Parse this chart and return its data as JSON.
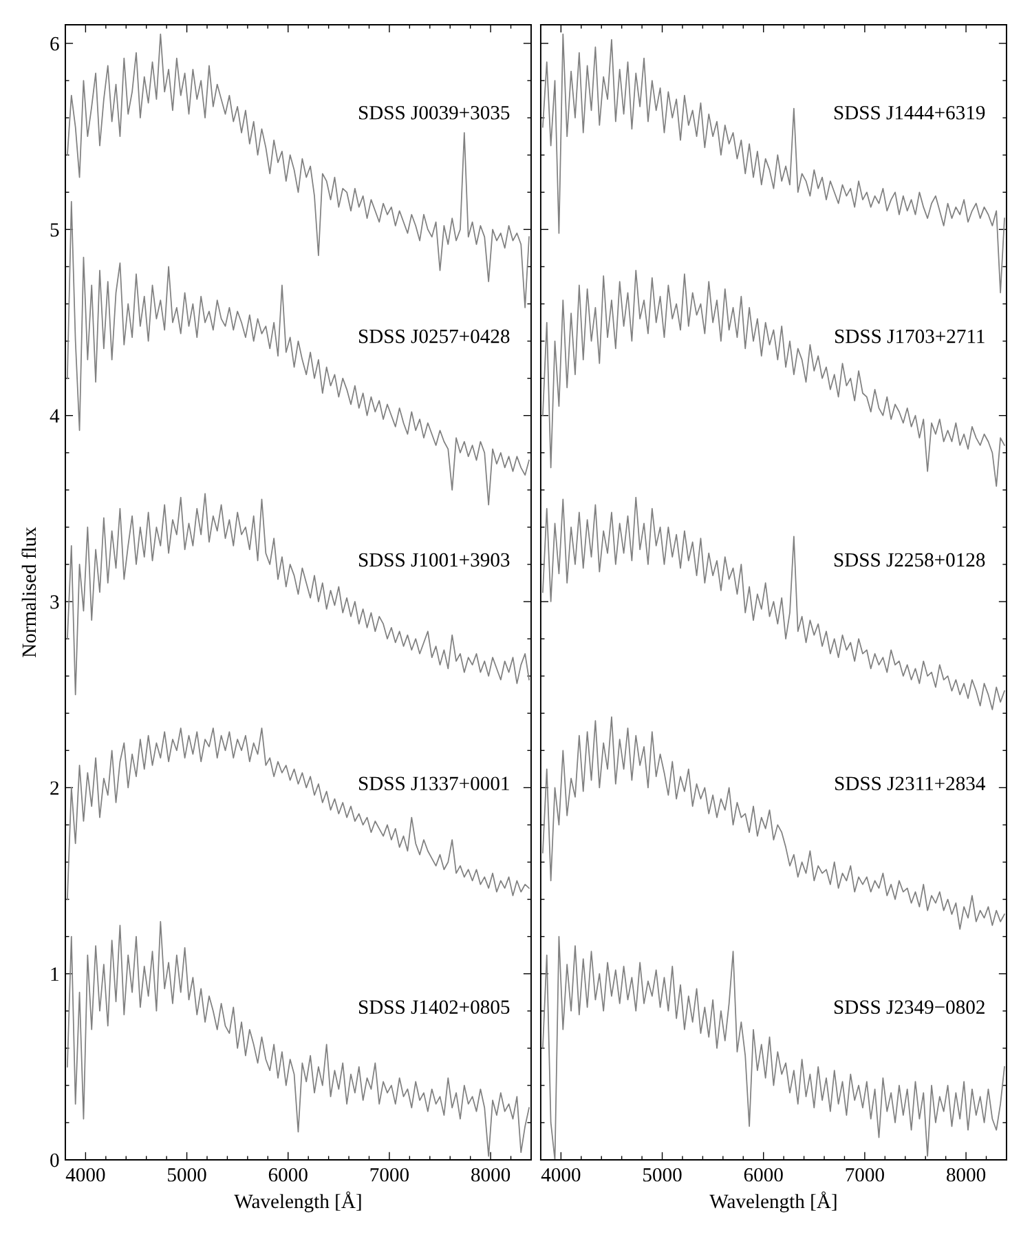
{
  "chart_data": [
    {
      "type": "line",
      "xlabel": "Wavelength [Å]",
      "ylabel": "Normalised flux",
      "x": [
        3820,
        3860,
        3900,
        3940,
        3980,
        4020,
        4060,
        4100,
        4140,
        4180,
        4220,
        4260,
        4300,
        4340,
        4380,
        4420,
        4460,
        4500,
        4540,
        4580,
        4620,
        4660,
        4700,
        4740,
        4780,
        4820,
        4860,
        4900,
        4940,
        4980,
        5020,
        5060,
        5100,
        5140,
        5180,
        5220,
        5260,
        5300,
        5340,
        5380,
        5420,
        5460,
        5500,
        5540,
        5580,
        5620,
        5660,
        5700,
        5740,
        5780,
        5820,
        5860,
        5900,
        5940,
        5980,
        6020,
        6060,
        6100,
        6140,
        6180,
        6220,
        6260,
        6300,
        6340,
        6380,
        6420,
        6460,
        6500,
        6540,
        6580,
        6620,
        6660,
        6700,
        6740,
        6780,
        6820,
        6860,
        6900,
        6940,
        6980,
        7020,
        7060,
        7100,
        7140,
        7180,
        7220,
        7260,
        7300,
        7340,
        7380,
        7420,
        7460,
        7500,
        7540,
        7580,
        7620,
        7660,
        7700,
        7740,
        7780,
        7820,
        7860,
        7900,
        7940,
        7980,
        8020,
        8060,
        8100,
        8140,
        8180,
        8220,
        8260,
        8300,
        8340,
        8380
      ],
      "xlim": [
        3800,
        8400
      ],
      "ylim": [
        0,
        6.1
      ],
      "xticks": [
        4000,
        {
          "value": 4200,
          "label": null
        },
        {
          "value": 4400,
          "label": null
        },
        {
          "value": 4600,
          "label": null
        },
        {
          "value": 4800,
          "label": null
        },
        5000,
        {
          "value": 5200,
          "label": null
        },
        {
          "value": 5400,
          "label": null
        },
        {
          "value": 5600,
          "label": null
        },
        {
          "value": 5800,
          "label": null
        },
        6000,
        {
          "value": 6200,
          "label": null
        },
        {
          "value": 6400,
          "label": null
        },
        {
          "value": 6600,
          "label": null
        },
        {
          "value": 6800,
          "label": null
        },
        7000,
        {
          "value": 7200,
          "label": null
        },
        {
          "value": 7400,
          "label": null
        },
        {
          "value": 7600,
          "label": null
        },
        {
          "value": 7800,
          "label": null
        },
        8000,
        {
          "value": 8200,
          "label": null
        }
      ],
      "yticks": [
        0,
        {
          "value": 0.2,
          "label": null
        },
        {
          "value": 0.4,
          "label": null
        },
        {
          "value": 0.6,
          "label": null
        },
        {
          "value": 0.8,
          "label": null
        },
        1,
        {
          "value": 1.2,
          "label": null
        },
        {
          "value": 1.4,
          "label": null
        },
        {
          "value": 1.6,
          "label": null
        },
        {
          "value": 1.8,
          "label": null
        },
        2,
        {
          "value": 2.2,
          "label": null
        },
        {
          "value": 2.4,
          "label": null
        },
        {
          "value": 2.6,
          "label": null
        },
        {
          "value": 2.8,
          "label": null
        },
        3,
        {
          "value": 3.2,
          "label": null
        },
        {
          "value": 3.4,
          "label": null
        },
        {
          "value": 3.6,
          "label": null
        },
        {
          "value": 3.8,
          "label": null
        },
        4,
        {
          "value": 4.2,
          "label": null
        },
        {
          "value": 4.4,
          "label": null
        },
        {
          "value": 4.6,
          "label": null
        },
        {
          "value": 4.8,
          "label": null
        },
        5,
        {
          "value": 5.2,
          "label": null
        },
        {
          "value": 5.4,
          "label": null
        },
        {
          "value": 5.6,
          "label": null
        },
        {
          "value": 5.8,
          "label": null
        },
        6
      ],
      "series": [
        {
          "name": "SDSS J0039+3035",
          "color": "#808080",
          "values": [
            5.4,
            5.72,
            5.55,
            5.28,
            5.8,
            5.5,
            5.66,
            5.84,
            5.45,
            5.7,
            5.88,
            5.58,
            5.78,
            5.5,
            5.92,
            5.62,
            5.74,
            5.95,
            5.6,
            5.82,
            5.68,
            5.9,
            5.7,
            6.05,
            5.74,
            5.86,
            5.64,
            5.92,
            5.72,
            5.84,
            5.62,
            5.86,
            5.7,
            5.8,
            5.6,
            5.88,
            5.66,
            5.78,
            5.7,
            5.62,
            5.72,
            5.58,
            5.66,
            5.52,
            5.64,
            5.46,
            5.58,
            5.4,
            5.54,
            5.44,
            5.3,
            5.48,
            5.36,
            5.42,
            5.26,
            5.4,
            5.32,
            5.2,
            5.38,
            5.28,
            5.34,
            5.18,
            4.86,
            5.3,
            5.26,
            5.16,
            5.28,
            5.12,
            5.22,
            5.2,
            5.1,
            5.22,
            5.12,
            5.18,
            5.06,
            5.16,
            5.1,
            5.04,
            5.14,
            5.08,
            5.12,
            5.02,
            5.1,
            5.04,
            4.98,
            5.08,
            5.02,
            4.94,
            5.08,
            5.0,
            4.96,
            5.04,
            4.78,
            5.02,
            4.92,
            5.06,
            4.94,
            5.0,
            5.52,
            4.96,
            5.04,
            4.92,
            5.02,
            4.96,
            4.72,
            5.0,
            4.94,
            4.98,
            4.9,
            5.02,
            4.94,
            4.98,
            4.92,
            4.58,
            4.96
          ]
        },
        {
          "name": "SDSS J0257+0428",
          "color": "#808080",
          "values": [
            4.2,
            5.15,
            4.4,
            3.92,
            4.85,
            4.3,
            4.7,
            4.18,
            4.78,
            4.36,
            4.72,
            4.3,
            4.66,
            4.82,
            4.38,
            4.6,
            4.42,
            4.76,
            4.48,
            4.64,
            4.4,
            4.7,
            4.52,
            4.62,
            4.46,
            4.8,
            4.5,
            4.58,
            4.44,
            4.66,
            4.48,
            4.6,
            4.42,
            4.64,
            4.5,
            4.56,
            4.46,
            4.62,
            4.52,
            4.48,
            4.58,
            4.46,
            4.56,
            4.5,
            4.42,
            4.54,
            4.4,
            4.52,
            4.44,
            4.48,
            4.36,
            4.5,
            4.32,
            4.7,
            4.34,
            4.42,
            4.26,
            4.4,
            4.3,
            4.22,
            4.34,
            4.2,
            4.3,
            4.12,
            4.26,
            4.16,
            4.22,
            4.1,
            4.2,
            4.14,
            4.06,
            4.16,
            4.04,
            4.12,
            4.0,
            4.1,
            4.02,
            4.08,
            3.98,
            4.06,
            4.0,
            3.94,
            4.04,
            3.96,
            3.9,
            4.02,
            3.92,
            3.98,
            3.88,
            3.96,
            3.9,
            3.84,
            3.92,
            3.86,
            3.82,
            3.6,
            3.88,
            3.8,
            3.86,
            3.78,
            3.84,
            3.76,
            3.86,
            3.8,
            3.52,
            3.82,
            3.74,
            3.8,
            3.72,
            3.78,
            3.7,
            3.78,
            3.72,
            3.68,
            3.76
          ]
        },
        {
          "name": "SDSS J1001+3903",
          "color": "#808080",
          "values": [
            2.8,
            3.3,
            2.5,
            3.2,
            2.95,
            3.4,
            2.9,
            3.28,
            3.05,
            3.45,
            3.1,
            3.38,
            3.18,
            3.5,
            3.12,
            3.3,
            3.46,
            3.2,
            3.4,
            3.24,
            3.48,
            3.22,
            3.4,
            3.3,
            3.52,
            3.26,
            3.44,
            3.36,
            3.56,
            3.28,
            3.42,
            3.3,
            3.5,
            3.36,
            3.58,
            3.32,
            3.46,
            3.38,
            3.52,
            3.34,
            3.44,
            3.3,
            3.48,
            3.36,
            3.4,
            3.28,
            3.46,
            3.22,
            3.55,
            3.26,
            3.2,
            3.34,
            3.12,
            3.24,
            3.08,
            3.2,
            3.14,
            3.04,
            3.18,
            3.1,
            3.02,
            3.14,
            3.0,
            3.1,
            2.96,
            3.06,
            2.98,
            3.08,
            2.94,
            3.02,
            2.92,
            3.0,
            2.88,
            2.96,
            2.86,
            2.94,
            2.84,
            2.92,
            2.88,
            2.8,
            2.86,
            2.78,
            2.84,
            2.76,
            2.82,
            2.74,
            2.8,
            2.72,
            2.78,
            2.84,
            2.7,
            2.76,
            2.66,
            2.74,
            2.64,
            2.82,
            2.68,
            2.72,
            2.62,
            2.7,
            2.66,
            2.72,
            2.62,
            2.68,
            2.6,
            2.7,
            2.64,
            2.58,
            2.68,
            2.62,
            2.7,
            2.56,
            2.66,
            2.72,
            2.58
          ]
        },
        {
          "name": "SDSS J1337+0001",
          "color": "#808080",
          "values": [
            1.4,
            2.0,
            1.7,
            2.12,
            1.82,
            2.08,
            1.9,
            2.16,
            1.84,
            2.05,
            1.96,
            2.2,
            1.92,
            2.14,
            2.24,
            2.0,
            2.18,
            2.06,
            2.26,
            2.1,
            2.28,
            2.12,
            2.24,
            2.16,
            2.3,
            2.14,
            2.26,
            2.2,
            2.32,
            2.16,
            2.28,
            2.18,
            2.3,
            2.14,
            2.26,
            2.22,
            2.32,
            2.16,
            2.28,
            2.2,
            2.3,
            2.16,
            2.26,
            2.2,
            2.28,
            2.14,
            2.24,
            2.18,
            2.32,
            2.12,
            2.16,
            2.06,
            2.14,
            2.08,
            2.12,
            2.04,
            2.1,
            2.02,
            2.08,
            2.0,
            2.06,
            1.96,
            2.02,
            1.92,
            1.98,
            1.88,
            1.94,
            1.86,
            1.92,
            1.84,
            1.9,
            1.82,
            1.86,
            1.8,
            1.84,
            1.76,
            1.82,
            1.78,
            1.74,
            1.8,
            1.72,
            1.78,
            1.68,
            1.74,
            1.66,
            1.84,
            1.7,
            1.64,
            1.72,
            1.66,
            1.62,
            1.58,
            1.64,
            1.56,
            1.6,
            1.72,
            1.54,
            1.58,
            1.52,
            1.56,
            1.5,
            1.56,
            1.48,
            1.52,
            1.46,
            1.54,
            1.44,
            1.5,
            1.46,
            1.52,
            1.42,
            1.5,
            1.44,
            1.48,
            1.46
          ]
        },
        {
          "name": "SDSS J1402+0805",
          "color": "#808080",
          "values": [
            0.5,
            1.2,
            0.3,
            0.9,
            0.22,
            1.1,
            0.7,
            1.15,
            0.8,
            1.05,
            0.72,
            1.18,
            0.85,
            1.26,
            0.78,
            1.1,
            0.9,
            1.2,
            0.82,
            1.04,
            0.88,
            1.12,
            0.8,
            1.28,
            0.92,
            1.06,
            0.84,
            1.1,
            0.9,
            1.14,
            0.86,
            0.98,
            0.78,
            0.92,
            0.74,
            0.88,
            0.8,
            0.7,
            0.84,
            0.72,
            0.68,
            0.82,
            0.6,
            0.74,
            0.56,
            0.7,
            0.62,
            0.52,
            0.66,
            0.54,
            0.48,
            0.62,
            0.44,
            0.58,
            0.4,
            0.54,
            0.46,
            0.15,
            0.52,
            0.42,
            0.56,
            0.36,
            0.5,
            0.4,
            0.62,
            0.34,
            0.48,
            0.38,
            0.52,
            0.3,
            0.46,
            0.36,
            0.5,
            0.32,
            0.44,
            0.38,
            0.52,
            0.3,
            0.42,
            0.36,
            0.4,
            0.3,
            0.44,
            0.34,
            0.38,
            0.28,
            0.42,
            0.32,
            0.36,
            0.26,
            0.38,
            0.3,
            0.34,
            0.24,
            0.44,
            0.28,
            0.36,
            0.22,
            0.4,
            0.3,
            0.34,
            0.26,
            0.38,
            0.28,
            0.02,
            0.32,
            0.24,
            0.36,
            0.26,
            0.3,
            0.22,
            0.34,
            0.04,
            0.18,
            0.28
          ]
        }
      ]
    },
    {
      "type": "line",
      "xlabel": "Wavelength [Å]",
      "tick_labels": "x",
      "x": [
        3820,
        3860,
        3900,
        3940,
        3980,
        4020,
        4060,
        4100,
        4140,
        4180,
        4220,
        4260,
        4300,
        4340,
        4380,
        4420,
        4460,
        4500,
        4540,
        4580,
        4620,
        4660,
        4700,
        4740,
        4780,
        4820,
        4860,
        4900,
        4940,
        4980,
        5020,
        5060,
        5100,
        5140,
        5180,
        5220,
        5260,
        5300,
        5340,
        5380,
        5420,
        5460,
        5500,
        5540,
        5580,
        5620,
        5660,
        5700,
        5740,
        5780,
        5820,
        5860,
        5900,
        5940,
        5980,
        6020,
        6060,
        6100,
        6140,
        6180,
        6220,
        6260,
        6300,
        6340,
        6380,
        6420,
        6460,
        6500,
        6540,
        6580,
        6620,
        6660,
        6700,
        6740,
        6780,
        6820,
        6860,
        6900,
        6940,
        6980,
        7020,
        7060,
        7100,
        7140,
        7180,
        7220,
        7260,
        7300,
        7340,
        7380,
        7420,
        7460,
        7500,
        7540,
        7580,
        7620,
        7660,
        7700,
        7740,
        7780,
        7820,
        7860,
        7900,
        7940,
        7980,
        8020,
        8060,
        8100,
        8140,
        8180,
        8220,
        8260,
        8300,
        8340,
        8380
      ],
      "xlim": [
        3800,
        8400
      ],
      "ylim": [
        0,
        6.1
      ],
      "xticks": [
        4000,
        {
          "value": 4200,
          "label": null
        },
        {
          "value": 4400,
          "label": null
        },
        {
          "value": 4600,
          "label": null
        },
        {
          "value": 4800,
          "label": null
        },
        5000,
        {
          "value": 5200,
          "label": null
        },
        {
          "value": 5400,
          "label": null
        },
        {
          "value": 5600,
          "label": null
        },
        {
          "value": 5800,
          "label": null
        },
        6000,
        {
          "value": 6200,
          "label": null
        },
        {
          "value": 6400,
          "label": null
        },
        {
          "value": 6600,
          "label": null
        },
        {
          "value": 6800,
          "label": null
        },
        7000,
        {
          "value": 7200,
          "label": null
        },
        {
          "value": 7400,
          "label": null
        },
        {
          "value": 7600,
          "label": null
        },
        {
          "value": 7800,
          "label": null
        },
        8000,
        {
          "value": 8200,
          "label": null
        }
      ],
      "yticks": [
        0,
        {
          "value": 0.2,
          "label": null
        },
        {
          "value": 0.4,
          "label": null
        },
        {
          "value": 0.6,
          "label": null
        },
        {
          "value": 0.8,
          "label": null
        },
        1,
        {
          "value": 1.2,
          "label": null
        },
        {
          "value": 1.4,
          "label": null
        },
        {
          "value": 1.6,
          "label": null
        },
        {
          "value": 1.8,
          "label": null
        },
        2,
        {
          "value": 2.2,
          "label": null
        },
        {
          "value": 2.4,
          "label": null
        },
        {
          "value": 2.6,
          "label": null
        },
        {
          "value": 2.8,
          "label": null
        },
        3,
        {
          "value": 3.2,
          "label": null
        },
        {
          "value": 3.4,
          "label": null
        },
        {
          "value": 3.6,
          "label": null
        },
        {
          "value": 3.8,
          "label": null
        },
        4,
        {
          "value": 4.2,
          "label": null
        },
        {
          "value": 4.4,
          "label": null
        },
        {
          "value": 4.6,
          "label": null
        },
        {
          "value": 4.8,
          "label": null
        },
        5,
        {
          "value": 5.2,
          "label": null
        },
        {
          "value": 5.4,
          "label": null
        },
        {
          "value": 5.6,
          "label": null
        },
        {
          "value": 5.8,
          "label": null
        },
        6
      ],
      "series": [
        {
          "name": "SDSS J1444+6319",
          "color": "#808080",
          "values": [
            5.55,
            5.9,
            5.45,
            5.8,
            4.98,
            6.05,
            5.5,
            5.85,
            5.6,
            5.95,
            5.52,
            5.88,
            5.64,
            5.98,
            5.56,
            5.82,
            5.7,
            6.02,
            5.58,
            5.86,
            5.62,
            5.9,
            5.54,
            5.84,
            5.66,
            5.92,
            5.58,
            5.8,
            5.64,
            5.76,
            5.52,
            5.74,
            5.6,
            5.7,
            5.48,
            5.72,
            5.56,
            5.64,
            5.5,
            5.68,
            5.44,
            5.62,
            5.5,
            5.58,
            5.4,
            5.56,
            5.46,
            5.52,
            5.38,
            5.48,
            5.3,
            5.46,
            5.28,
            5.42,
            5.24,
            5.38,
            5.32,
            5.22,
            5.4,
            5.26,
            5.34,
            5.24,
            5.65,
            5.2,
            5.3,
            5.26,
            5.18,
            5.32,
            5.22,
            5.28,
            5.16,
            5.26,
            5.2,
            5.14,
            5.24,
            5.18,
            5.22,
            5.12,
            5.26,
            5.16,
            5.2,
            5.12,
            5.18,
            5.14,
            5.22,
            5.1,
            5.16,
            5.2,
            5.08,
            5.18,
            5.1,
            5.16,
            5.08,
            5.2,
            5.12,
            5.06,
            5.14,
            5.18,
            5.1,
            5.02,
            5.14,
            5.06,
            5.12,
            5.08,
            5.16,
            5.04,
            5.1,
            5.14,
            5.06,
            5.12,
            5.08,
            5.02,
            5.1,
            4.66,
            5.06
          ]
        },
        {
          "name": "SDSS J1703+2711",
          "color": "#808080",
          "values": [
            4.0,
            4.5,
            3.72,
            4.4,
            4.05,
            4.62,
            4.15,
            4.55,
            4.22,
            4.7,
            4.3,
            4.68,
            4.4,
            4.58,
            4.28,
            4.75,
            4.42,
            4.62,
            4.36,
            4.72,
            4.48,
            4.66,
            4.4,
            4.78,
            4.52,
            4.62,
            4.44,
            4.74,
            4.5,
            4.64,
            4.42,
            4.7,
            4.52,
            4.6,
            4.46,
            4.76,
            4.48,
            4.66,
            4.54,
            4.6,
            4.44,
            4.72,
            4.5,
            4.62,
            4.4,
            4.68,
            4.46,
            4.58,
            4.42,
            4.64,
            4.36,
            4.58,
            4.4,
            4.52,
            4.32,
            4.5,
            4.38,
            4.46,
            4.3,
            4.48,
            4.26,
            4.4,
            4.22,
            4.36,
            4.3,
            4.18,
            4.38,
            4.24,
            4.32,
            4.2,
            4.26,
            4.14,
            4.22,
            4.1,
            4.28,
            4.16,
            4.2,
            4.08,
            4.24,
            4.12,
            4.1,
            4.02,
            4.14,
            4.04,
            4.0,
            4.1,
            3.98,
            4.06,
            4.02,
            3.96,
            4.04,
            3.94,
            4.0,
            3.88,
            3.98,
            3.7,
            3.96,
            3.9,
            3.98,
            3.86,
            3.92,
            3.86,
            3.96,
            3.84,
            3.9,
            3.82,
            3.94,
            3.88,
            3.84,
            3.9,
            3.86,
            3.8,
            3.62,
            3.88,
            3.84
          ]
        },
        {
          "name": "SDSS J2258+0128",
          "color": "#808080",
          "values": [
            3.05,
            3.5,
            3.0,
            3.42,
            3.15,
            3.55,
            3.1,
            3.4,
            3.2,
            3.48,
            3.18,
            3.44,
            3.24,
            3.52,
            3.16,
            3.38,
            3.26,
            3.48,
            3.2,
            3.42,
            3.26,
            3.46,
            3.22,
            3.56,
            3.28,
            3.42,
            3.2,
            3.5,
            3.3,
            3.4,
            3.2,
            3.4,
            3.24,
            3.36,
            3.18,
            3.38,
            3.22,
            3.32,
            3.14,
            3.34,
            3.1,
            3.26,
            3.14,
            3.22,
            3.06,
            3.24,
            3.12,
            3.18,
            3.04,
            3.2,
            2.94,
            3.08,
            2.9,
            3.04,
            2.96,
            3.1,
            2.92,
            3.0,
            2.88,
            3.02,
            2.8,
            2.94,
            3.35,
            2.84,
            2.92,
            2.78,
            2.9,
            2.82,
            2.88,
            2.76,
            2.84,
            2.72,
            2.8,
            2.7,
            2.82,
            2.74,
            2.78,
            2.68,
            2.8,
            2.72,
            2.74,
            2.64,
            2.72,
            2.66,
            2.7,
            2.62,
            2.74,
            2.66,
            2.68,
            2.6,
            2.66,
            2.58,
            2.64,
            2.56,
            2.68,
            2.6,
            2.62,
            2.54,
            2.66,
            2.58,
            2.6,
            2.52,
            2.58,
            2.5,
            2.56,
            2.48,
            2.58,
            2.52,
            2.44,
            2.56,
            2.5,
            2.42,
            2.54,
            2.46,
            2.52
          ]
        },
        {
          "name": "SDSS J2311+2834",
          "color": "#808080",
          "values": [
            1.65,
            2.1,
            1.5,
            2.0,
            1.8,
            2.2,
            1.85,
            2.05,
            1.95,
            2.28,
            1.98,
            2.3,
            2.04,
            2.36,
            2.0,
            2.24,
            2.1,
            2.38,
            2.02,
            2.26,
            2.1,
            2.32,
            2.04,
            2.28,
            2.12,
            2.22,
            2.0,
            2.3,
            2.06,
            2.18,
            2.08,
            1.96,
            2.14,
            1.94,
            2.06,
            1.98,
            2.1,
            1.9,
            2.02,
            1.94,
            2.0,
            1.86,
            1.96,
            1.84,
            1.94,
            1.88,
            2.0,
            1.8,
            1.92,
            1.84,
            1.86,
            1.76,
            1.9,
            1.74,
            1.84,
            1.78,
            1.88,
            1.72,
            1.8,
            1.76,
            1.68,
            1.58,
            1.64,
            1.52,
            1.6,
            1.54,
            1.66,
            1.5,
            1.58,
            1.54,
            1.56,
            1.48,
            1.6,
            1.46,
            1.54,
            1.5,
            1.58,
            1.44,
            1.52,
            1.48,
            1.52,
            1.44,
            1.5,
            1.46,
            1.54,
            1.42,
            1.48,
            1.4,
            1.5,
            1.44,
            1.46,
            1.38,
            1.44,
            1.36,
            1.48,
            1.34,
            1.42,
            1.38,
            1.44,
            1.34,
            1.4,
            1.32,
            1.38,
            1.24,
            1.36,
            1.3,
            1.42,
            1.28,
            1.34,
            1.3,
            1.36,
            1.26,
            1.34,
            1.28,
            1.32
          ]
        },
        {
          "name": "SDSS J2349−0802",
          "color": "#808080",
          "values": [
            0.6,
            1.1,
            0.2,
            0.0,
            1.2,
            0.7,
            1.05,
            0.8,
            1.15,
            0.78,
            1.08,
            0.82,
            1.12,
            0.86,
            1.0,
            0.8,
            1.06,
            0.88,
            1.02,
            0.84,
            1.04,
            0.86,
            0.98,
            0.8,
            1.06,
            0.84,
            0.96,
            0.88,
            1.02,
            0.82,
            0.98,
            0.8,
            1.04,
            0.76,
            0.94,
            0.7,
            0.88,
            0.74,
            0.92,
            0.68,
            0.82,
            0.66,
            0.86,
            0.6,
            0.8,
            0.64,
            0.84,
            1.12,
            0.58,
            0.74,
            0.56,
            0.18,
            0.7,
            0.48,
            0.62,
            0.44,
            0.66,
            0.4,
            0.58,
            0.46,
            0.52,
            0.36,
            0.48,
            0.3,
            0.54,
            0.34,
            0.46,
            0.28,
            0.5,
            0.32,
            0.44,
            0.26,
            0.48,
            0.3,
            0.42,
            0.24,
            0.46,
            0.32,
            0.4,
            0.28,
            0.42,
            0.22,
            0.38,
            0.12,
            0.44,
            0.26,
            0.36,
            0.2,
            0.4,
            0.24,
            0.38,
            0.16,
            0.42,
            0.22,
            0.36,
            0.02,
            0.4,
            0.2,
            0.34,
            0.26,
            0.4,
            0.18,
            0.36,
            0.22,
            0.42,
            0.16,
            0.38,
            0.24,
            0.34,
            0.2,
            0.38,
            0.22,
            0.16,
            0.3,
            0.5
          ]
        }
      ]
    }
  ]
}
